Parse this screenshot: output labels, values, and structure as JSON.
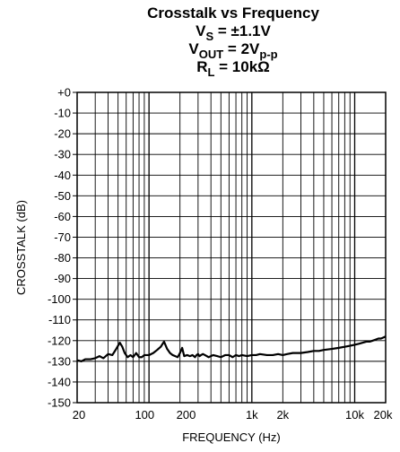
{
  "chart_data": {
    "type": "line",
    "title_lines": [
      {
        "main": "Crosstalk vs Frequency",
        "sub": ""
      },
      {
        "main": "V",
        "sub": "S",
        "rest": " = ±1.1V"
      },
      {
        "main": "V",
        "sub": "OUT",
        "rest": " = 2V",
        "sub2": "p-p"
      },
      {
        "main": "R",
        "sub": "L",
        "rest": " = 10kΩ"
      }
    ],
    "xlabel": "FREQUENCY (Hz)",
    "ylabel": "CROSSTALK (dB)",
    "xscale": "log",
    "xlim": [
      20,
      20000
    ],
    "ylim": [
      -150,
      0
    ],
    "grid": true,
    "x_tick_labels": [
      {
        "value": 20,
        "label": "20"
      },
      {
        "value": 100,
        "label": "100"
      },
      {
        "value": 200,
        "label": "200"
      },
      {
        "value": 1000,
        "label": "1k"
      },
      {
        "value": 2000,
        "label": "2k"
      },
      {
        "value": 10000,
        "label": "10k"
      },
      {
        "value": 20000,
        "label": "20k"
      }
    ],
    "y_tick_labels": [
      {
        "value": 0,
        "label": "+0"
      },
      {
        "value": -10,
        "label": "-10"
      },
      {
        "value": -20,
        "label": "-20"
      },
      {
        "value": -30,
        "label": "-30"
      },
      {
        "value": -40,
        "label": "-40"
      },
      {
        "value": -50,
        "label": "-50"
      },
      {
        "value": -60,
        "label": "-60"
      },
      {
        "value": -70,
        "label": "-70"
      },
      {
        "value": -80,
        "label": "-80"
      },
      {
        "value": -90,
        "label": "-90"
      },
      {
        "value": -100,
        "label": "-100"
      },
      {
        "value": -110,
        "label": "-110"
      },
      {
        "value": -120,
        "label": "-120"
      },
      {
        "value": -130,
        "label": "-130"
      },
      {
        "value": -140,
        "label": "-140"
      },
      {
        "value": -150,
        "label": "-150"
      }
    ],
    "series": [
      {
        "x": [
          20,
          22,
          24,
          27,
          30,
          33,
          36,
          40,
          44,
          48,
          52,
          55,
          58,
          62,
          66,
          70,
          75,
          80,
          85,
          90,
          100,
          110,
          120,
          130,
          140,
          150,
          160,
          170,
          180,
          190,
          200,
          210,
          220,
          235,
          250,
          265,
          280,
          290,
          300,
          310,
          320,
          335,
          350,
          380,
          420,
          460,
          500,
          550,
          600,
          650,
          700,
          750,
          800,
          900,
          1000,
          1100,
          1200,
          1400,
          1600,
          1800,
          2000,
          2200,
          2500,
          3000,
          3500,
          4000,
          4500,
          5000,
          6000,
          7000,
          8000,
          9000,
          10000,
          11000,
          12000,
          13000,
          14000,
          15000,
          16000,
          17000,
          18000,
          19000,
          20000
        ],
        "y": [
          -129.5,
          -130,
          -129,
          -129,
          -128.5,
          -127.5,
          -128.5,
          -126.5,
          -127,
          -124,
          -121,
          -123,
          -126,
          -128,
          -127,
          -128,
          -126,
          -128,
          -128,
          -127,
          -127,
          -126,
          -124.5,
          -123,
          -120.5,
          -124,
          -126,
          -127,
          -127.5,
          -128,
          -126,
          -123.5,
          -127.5,
          -127,
          -127.5,
          -127,
          -128,
          -127,
          -126.5,
          -127.5,
          -127,
          -126.5,
          -127,
          -128,
          -127,
          -127.5,
          -128,
          -127,
          -127,
          -128,
          -127,
          -127.5,
          -127,
          -127.5,
          -127,
          -127,
          -126.5,
          -127,
          -127,
          -126.5,
          -127,
          -126.5,
          -126,
          -126,
          -125.5,
          -125,
          -125,
          -124.5,
          -124,
          -123.5,
          -123,
          -122.5,
          -122,
          -121.5,
          -121,
          -120.5,
          -120.5,
          -120,
          -119.5,
          -119,
          -119,
          -118.5,
          -118
        ]
      }
    ]
  }
}
